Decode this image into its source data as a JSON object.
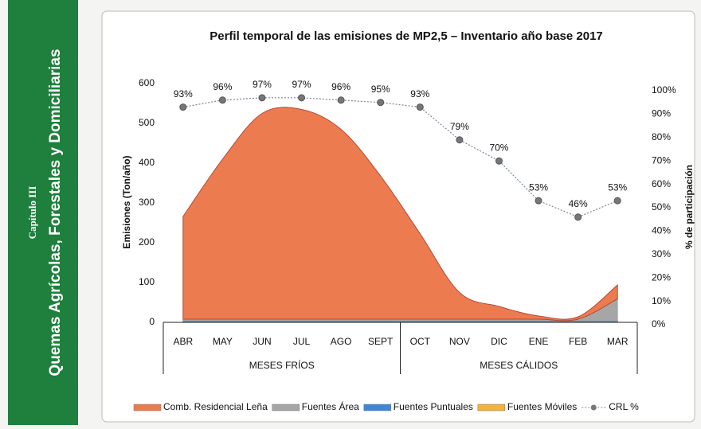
{
  "sidebar": {
    "chapter": "Capítulo III",
    "title": "Quemas Agrícolas, Forestales y Domiciliarias"
  },
  "chart_data": {
    "type": "stacked-area-line",
    "title": "Perfil temporal de las emisiones de MP2,5 – Inventario año base 2017",
    "ylabel": "Emisiones (Ton/año)",
    "y2label": "% de participación",
    "categories": [
      "ABR",
      "MAY",
      "JUN",
      "JUL",
      "AGO",
      "SEPT",
      "OCT",
      "NOV",
      "DIC",
      "ENE",
      "FEB",
      "MAR"
    ],
    "category_groups": [
      "MESES FRÍOS",
      "MESES CÁLIDOS"
    ],
    "series": [
      {
        "name": "Comb. Residencial Leña",
        "color": "#ec7b4f",
        "values": [
          258,
          402,
          517,
          527,
          477,
          360,
          215,
          67,
          32,
          8,
          6,
          35
        ]
      },
      {
        "name": "Fuentes Área",
        "color": "#a6a6a6",
        "values": [
          4,
          4,
          4,
          4,
          4,
          4,
          4,
          4,
          4,
          4,
          4,
          55
        ]
      },
      {
        "name": "Fuentes Puntuales",
        "color": "#3f86d6",
        "values": [
          2,
          2,
          2,
          2,
          2,
          2,
          2,
          2,
          2,
          2,
          2,
          2
        ]
      },
      {
        "name": "Fuentes Móviles",
        "color": "#f2b33d",
        "values": [
          2,
          2,
          2,
          2,
          2,
          2,
          2,
          2,
          2,
          2,
          2,
          2
        ]
      },
      {
        "name": "CRL %",
        "color": "#7a8797",
        "axis": "y2",
        "values": [
          93,
          96,
          97,
          97,
          96,
          95,
          93,
          79,
          70,
          53,
          46,
          53
        ],
        "value_labels": [
          "93%",
          "96%",
          "97%",
          "97%",
          "96%",
          "95%",
          "93%",
          "79%",
          "70%",
          "53%",
          "46%",
          "53%"
        ]
      }
    ],
    "ylim": [
      0,
      600
    ],
    "yticks": [
      0,
      100,
      200,
      300,
      400,
      500,
      600
    ],
    "y2lim": [
      0,
      100
    ],
    "y2ticks": [
      {
        "value": 0,
        "label": "0%"
      },
      {
        "value": 10,
        "label": "10%"
      },
      {
        "value": 20,
        "label": "20%"
      },
      {
        "value": 30,
        "label": "30%"
      },
      {
        "value": 40,
        "label": "40%"
      },
      {
        "value": 50,
        "label": "50%"
      },
      {
        "value": 60,
        "label": "60%"
      },
      {
        "value": 70,
        "label": "70%"
      },
      {
        "value": 80,
        "label": "80%"
      },
      {
        "value": 90,
        "label": "90%"
      },
      {
        "value": 100,
        "label": "100%"
      }
    ]
  }
}
